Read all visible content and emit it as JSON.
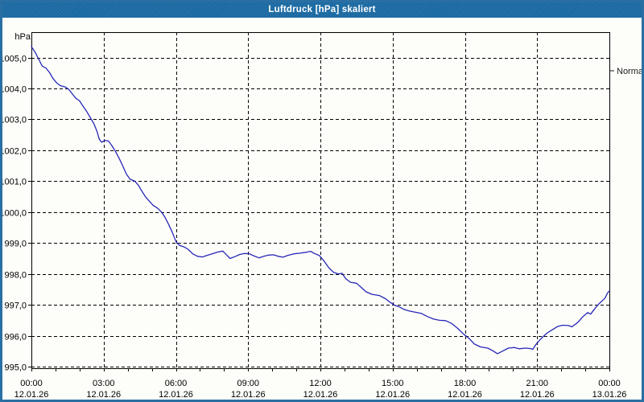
{
  "window": {
    "title": "Luftdruck [hPa] skaliert"
  },
  "chart": {
    "unit_label": "hPa",
    "legend": {
      "label": "Normal"
    }
  },
  "colors": {
    "titlebar": "#1a69a2",
    "window_border": "#2a6fa4",
    "background": "#fdfdfa",
    "grid": "#000000",
    "axis": "#000000",
    "series_line": "#2727b8",
    "label_text": "#000000",
    "legend_text": "#1c1c1c"
  },
  "chart_data": {
    "type": "line",
    "title": "Luftdruck [hPa] skaliert",
    "xlabel": "",
    "ylabel": "hPa",
    "grid": "dashed",
    "legend_position": "right",
    "ylim": [
      994.95,
      1005.82
    ],
    "xlim_hours": [
      0,
      24
    ],
    "y_ticks": [
      {
        "value": 1005,
        "label": "1005,0"
      },
      {
        "value": 1004,
        "label": "1004,0"
      },
      {
        "value": 1003,
        "label": "1003,0"
      },
      {
        "value": 1002,
        "label": "1002,0"
      },
      {
        "value": 1001,
        "label": "1001,0"
      },
      {
        "value": 1000,
        "label": "1000,0"
      },
      {
        "value": 999,
        "label": "999,0"
      },
      {
        "value": 998,
        "label": "998,0"
      },
      {
        "value": 997,
        "label": "997,0"
      },
      {
        "value": 996,
        "label": "996,0"
      },
      {
        "value": 995,
        "label": "995,0"
      }
    ],
    "x_ticks": [
      {
        "hour": 0,
        "time": "00:00",
        "date": "12.01.26"
      },
      {
        "hour": 3,
        "time": "03:00",
        "date": "12.01.26"
      },
      {
        "hour": 6,
        "time": "06:00",
        "date": "12.01.26"
      },
      {
        "hour": 9,
        "time": "09:00",
        "date": "12.01.26"
      },
      {
        "hour": 12,
        "time": "12:00",
        "date": "12.01.26"
      },
      {
        "hour": 15,
        "time": "15:00",
        "date": "12.01.26"
      },
      {
        "hour": 18,
        "time": "18:00",
        "date": "12.01.26"
      },
      {
        "hour": 21,
        "time": "21:00",
        "date": "12.01.26"
      },
      {
        "hour": 24,
        "time": "00:00",
        "date": "13.01.26"
      }
    ],
    "series": [
      {
        "name": "Normal",
        "color": "#2727b8",
        "x": [
          0,
          0.15,
          0.3,
          0.45,
          0.6,
          0.75,
          0.9,
          1.05,
          1.2,
          1.4,
          1.55,
          1.7,
          1.85,
          2.0,
          2.15,
          2.3,
          2.45,
          2.6,
          2.72,
          2.82,
          2.92,
          3.05,
          3.2,
          3.35,
          3.5,
          3.65,
          3.8,
          3.95,
          4.1,
          4.3,
          4.45,
          4.6,
          4.75,
          4.9,
          5.05,
          5.25,
          5.4,
          5.55,
          5.7,
          5.85,
          6.0,
          6.15,
          6.35,
          6.5,
          6.7,
          6.9,
          7.1,
          7.3,
          7.55,
          7.75,
          7.95,
          8.1,
          8.25,
          8.45,
          8.65,
          8.85,
          9.05,
          9.25,
          9.45,
          9.65,
          9.85,
          10.05,
          10.25,
          10.45,
          10.65,
          10.9,
          11.15,
          11.4,
          11.6,
          11.75,
          11.95,
          12.15,
          12.35,
          12.55,
          12.75,
          12.9,
          13.05,
          13.25,
          13.5,
          13.7,
          13.9,
          14.15,
          14.45,
          14.7,
          14.9,
          15.1,
          15.3,
          15.45,
          15.7,
          15.95,
          16.2,
          16.45,
          16.7,
          16.95,
          17.2,
          17.45,
          17.7,
          17.95,
          18.15,
          18.4,
          18.65,
          18.95,
          19.15,
          19.35,
          19.55,
          19.8,
          20.05,
          20.25,
          20.5,
          20.7,
          20.82,
          20.95,
          21.15,
          21.4,
          21.6,
          21.85,
          22.05,
          22.3,
          22.45,
          22.7,
          22.9,
          23.1,
          23.22,
          23.4,
          23.55,
          23.7,
          23.82,
          23.92,
          24.0
        ],
        "y": [
          1005.35,
          1005.18,
          1004.95,
          1004.72,
          1004.66,
          1004.52,
          1004.32,
          1004.18,
          1004.09,
          1004.05,
          1003.97,
          1003.82,
          1003.68,
          1003.6,
          1003.42,
          1003.25,
          1003.05,
          1002.85,
          1002.62,
          1002.35,
          1002.26,
          1002.32,
          1002.3,
          1002.14,
          1001.95,
          1001.73,
          1001.48,
          1001.22,
          1001.06,
          1001.0,
          1000.86,
          1000.66,
          1000.48,
          1000.35,
          1000.22,
          1000.12,
          1000.0,
          999.83,
          999.6,
          999.35,
          999.05,
          998.92,
          998.87,
          998.8,
          998.65,
          998.57,
          998.55,
          998.6,
          998.66,
          998.71,
          998.74,
          998.62,
          998.5,
          998.56,
          998.63,
          998.66,
          998.65,
          998.58,
          998.52,
          998.57,
          998.61,
          998.62,
          998.57,
          998.54,
          998.6,
          998.65,
          998.67,
          998.7,
          998.73,
          998.66,
          998.6,
          998.42,
          998.2,
          998.05,
          998.0,
          998.02,
          997.85,
          997.73,
          997.7,
          997.56,
          997.42,
          997.34,
          997.3,
          997.2,
          997.08,
          996.98,
          996.93,
          996.86,
          996.8,
          996.76,
          996.72,
          996.62,
          996.54,
          996.5,
          996.49,
          996.4,
          996.24,
          996.05,
          995.93,
          995.73,
          995.64,
          995.6,
          995.52,
          995.42,
          995.5,
          995.6,
          995.62,
          995.58,
          995.6,
          995.59,
          995.56,
          995.72,
          995.9,
          996.08,
          996.18,
          996.3,
          996.34,
          996.33,
          996.29,
          996.44,
          996.62,
          996.75,
          996.7,
          996.88,
          997.02,
          997.13,
          997.22,
          997.38,
          997.45
        ]
      }
    ]
  }
}
